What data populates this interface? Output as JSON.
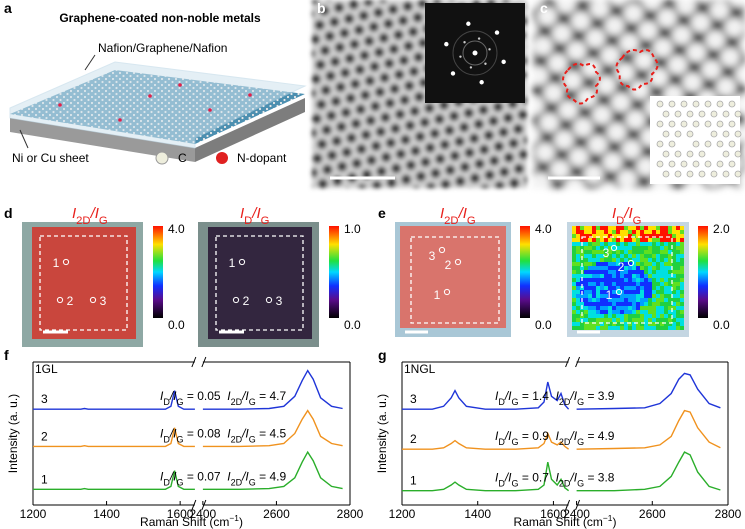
{
  "panel_a": {
    "letter": "a",
    "title": "Graphene-coated non-noble metals",
    "layer_label": "Nafion/Graphene/Nafion",
    "substrate_label": "Ni or Cu sheet",
    "legend": [
      "C",
      "N-dopant"
    ]
  },
  "panel_b": {
    "letter": "b"
  },
  "panel_c": {
    "letter": "c"
  },
  "panel_d": {
    "letter": "d",
    "maps": [
      {
        "label": [
          {
            "main": "I",
            "sub": "2D"
          },
          {
            "main": "/I",
            "sub": "G"
          }
        ],
        "colorbar": [
          "4.0",
          "0.0"
        ],
        "points": [
          "1",
          "2",
          "3"
        ]
      },
      {
        "label": [
          {
            "main": "I",
            "sub": "D"
          },
          {
            "main": "/I",
            "sub": "G"
          }
        ],
        "colorbar": [
          "1.0",
          "0.0"
        ],
        "points": [
          "1",
          "2",
          "3"
        ]
      }
    ]
  },
  "panel_e": {
    "letter": "e",
    "maps": [
      {
        "label": [
          {
            "main": "I",
            "sub": "2D"
          },
          {
            "main": "/I",
            "sub": "G"
          }
        ],
        "colorbar": [
          "4.0",
          "0.0"
        ],
        "points": [
          "1",
          "2",
          "3"
        ]
      },
      {
        "label": [
          {
            "main": "I",
            "sub": "D"
          },
          {
            "main": "/I",
            "sub": "G"
          }
        ],
        "colorbar": [
          "2.0",
          "0.0"
        ],
        "points": [
          "1",
          "2",
          "3"
        ]
      }
    ]
  },
  "chart_data": [
    {
      "type": "line",
      "panel": "f",
      "title": "1GL",
      "xlabel": {
        "main": "Raman Shift (cm",
        "sup": "−1",
        "end": ")"
      },
      "ylabel": "Intensity (a. u.)",
      "x": [
        1200,
        1280,
        1310,
        1330,
        1340,
        1350,
        1370,
        1420,
        1500,
        1560,
        1575,
        1585,
        1595,
        1610,
        1620,
        1630,
        1640,
        2000,
        2400,
        2500,
        2580,
        2620,
        2650,
        2670,
        2685,
        2700,
        2720,
        2750,
        2780
      ],
      "xlim": [
        1200,
        2800
      ],
      "axis_break": [
        1640,
        2400
      ],
      "xticks": [
        1200,
        1400,
        1600,
        2400,
        2600,
        2800
      ],
      "ylim": [
        0,
        100
      ],
      "series": [
        {
          "name": "1",
          "color": "#2aae2a",
          "values": [
            11,
            11,
            11,
            11,
            11.5,
            11,
            11,
            11,
            11,
            11,
            13,
            24,
            13,
            11,
            11,
            11,
            11,
            null,
            11,
            11,
            11.5,
            13,
            19,
            30,
            37,
            31,
            19,
            13,
            11.5
          ],
          "annotation": [
            {
              "main": "I",
              "sub": "D"
            },
            {
              "main": "/I",
              "sub": "G"
            },
            {
              "main": " = 0.07  "
            },
            {
              "main": "I",
              "sub": "2D"
            },
            {
              "main": "/I",
              "sub": "G"
            },
            {
              "main": " = 4.9"
            }
          ]
        },
        {
          "name": "2",
          "color": "#f0921e",
          "values": [
            41,
            41,
            41,
            41,
            41.5,
            41,
            41,
            41,
            41,
            41,
            43,
            54,
            43,
            41,
            41,
            41,
            41,
            null,
            41,
            41,
            41.5,
            43,
            50,
            60,
            66,
            60,
            48,
            43,
            41.5
          ],
          "annotation": [
            {
              "main": "I",
              "sub": "D"
            },
            {
              "main": "/I",
              "sub": "G"
            },
            {
              "main": " = 0.08  "
            },
            {
              "main": "I",
              "sub": "2D"
            },
            {
              "main": "/I",
              "sub": "G"
            },
            {
              "main": " = 4.5"
            }
          ]
        },
        {
          "name": "3",
          "color": "#1f35d8",
          "values": [
            67,
            67,
            67,
            67,
            67.5,
            67,
            67,
            67,
            67,
            67,
            69,
            80,
            69,
            67,
            67,
            67,
            67,
            null,
            67,
            67,
            67.5,
            69,
            76,
            87,
            94,
            88,
            75,
            69,
            67.5
          ],
          "annotation": [
            {
              "main": "I",
              "sub": "D"
            },
            {
              "main": "/I",
              "sub": "G"
            },
            {
              "main": " = 0.05  "
            },
            {
              "main": "I",
              "sub": "2D"
            },
            {
              "main": "/I",
              "sub": "G"
            },
            {
              "main": " = 4.7"
            }
          ]
        }
      ]
    },
    {
      "type": "line",
      "panel": "g",
      "title": "1NGL",
      "xlabel": {
        "main": "Raman Shift (cm",
        "sup": "−1",
        "end": ")"
      },
      "ylabel": "Intensity (a. u.)",
      "x": [
        1200,
        1280,
        1310,
        1330,
        1340,
        1350,
        1370,
        1420,
        1500,
        1560,
        1575,
        1585,
        1595,
        1610,
        1620,
        1630,
        1640,
        2000,
        2400,
        2500,
        2580,
        2620,
        2650,
        2670,
        2685,
        2700,
        2720,
        2750,
        2780
      ],
      "xlim": [
        1200,
        2800
      ],
      "axis_break": [
        1640,
        2400
      ],
      "xticks": [
        1200,
        1400,
        1600,
        2400,
        2600,
        2800
      ],
      "ylim": [
        0,
        100
      ],
      "series": [
        {
          "name": "1",
          "color": "#2aae2a",
          "values": [
            10,
            10,
            11,
            14,
            16,
            14,
            11,
            10,
            10,
            11,
            14,
            30,
            18,
            14,
            18,
            12,
            10,
            null,
            10,
            10,
            11,
            13,
            20,
            30,
            37,
            35,
            23,
            13,
            10.5
          ],
          "annotation": [
            {
              "main": "I",
              "sub": "D"
            },
            {
              "main": "/I",
              "sub": "G"
            },
            {
              "main": " = 0.7  "
            },
            {
              "main": "I",
              "sub": "2D"
            },
            {
              "main": "/I",
              "sub": "G"
            },
            {
              "main": " = 3.8"
            }
          ]
        },
        {
          "name": "2",
          "color": "#f0921e",
          "values": [
            39,
            39,
            40,
            43,
            45,
            43,
            40,
            39,
            39,
            40,
            43,
            50,
            44,
            42,
            44,
            41,
            39,
            null,
            39,
            39.5,
            40,
            42,
            48,
            59,
            66,
            65,
            54,
            44,
            40
          ],
          "annotation": [
            {
              "main": "I",
              "sub": "D"
            },
            {
              "main": "/I",
              "sub": "G"
            },
            {
              "main": " = 0.9  "
            },
            {
              "main": "I",
              "sub": "2D"
            },
            {
              "main": "/I",
              "sub": "G"
            },
            {
              "main": " = 4.9"
            }
          ]
        },
        {
          "name": "3",
          "color": "#1f35d8",
          "values": [
            67,
            67,
            69,
            75,
            80,
            75,
            69,
            67,
            67,
            68,
            72,
            86,
            76,
            73,
            78,
            70,
            67,
            null,
            67,
            67.5,
            68,
            71,
            78,
            88,
            92,
            91,
            81,
            71,
            68
          ],
          "annotation": [
            {
              "main": "I",
              "sub": "D"
            },
            {
              "main": "/I",
              "sub": "G"
            },
            {
              "main": " = 1.4  "
            },
            {
              "main": "I",
              "sub": "2D"
            },
            {
              "main": "/I",
              "sub": "G"
            },
            {
              "main": " = 3.9"
            }
          ]
        }
      ]
    }
  ]
}
